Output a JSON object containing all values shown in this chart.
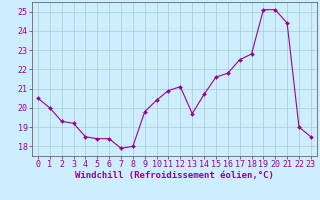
{
  "x": [
    0,
    1,
    2,
    3,
    4,
    5,
    6,
    7,
    8,
    9,
    10,
    11,
    12,
    13,
    14,
    15,
    16,
    17,
    18,
    19,
    20,
    21,
    22,
    23
  ],
  "y": [
    20.5,
    20.0,
    19.3,
    19.2,
    18.5,
    18.4,
    18.4,
    17.9,
    18.0,
    19.8,
    20.4,
    20.9,
    21.1,
    19.7,
    20.7,
    21.6,
    21.8,
    22.5,
    22.8,
    25.1,
    25.1,
    24.4,
    19.0,
    18.5
  ],
  "line_color": "#990099",
  "marker": "D",
  "marker_size": 2.0,
  "bg_color": "#cceeff",
  "grid_color": "#aacccc",
  "xlabel": "Windchill (Refroidissement éolien,°C)",
  "xlabel_color": "#990099",
  "tick_color": "#990099",
  "ylim": [
    17.5,
    25.5
  ],
  "yticks": [
    18,
    19,
    20,
    21,
    22,
    23,
    24,
    25
  ],
  "xticks": [
    0,
    1,
    2,
    3,
    4,
    5,
    6,
    7,
    8,
    9,
    10,
    11,
    12,
    13,
    14,
    15,
    16,
    17,
    18,
    19,
    20,
    21,
    22,
    23
  ],
  "axis_color": "#666666",
  "font_size_label": 6.5,
  "font_size_tick": 6.0
}
